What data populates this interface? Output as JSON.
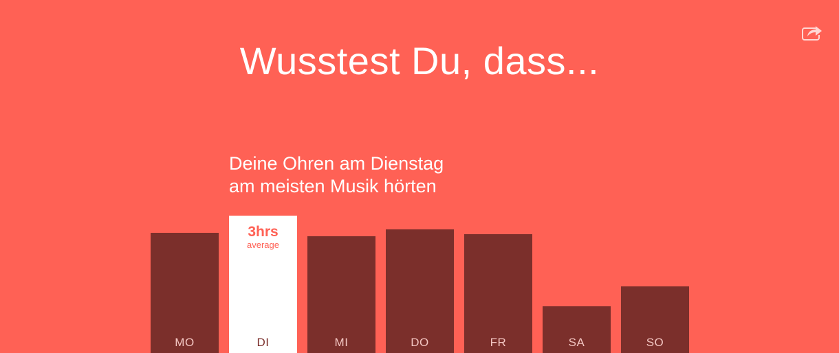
{
  "headline": "Wusstest Du, dass...",
  "caption": {
    "line1": "Deine Ohren am Dienstag",
    "line2": "am meisten Musik hörten"
  },
  "share": {
    "icon": "share-icon"
  },
  "colors": {
    "background": "#ff6155",
    "bar": "#7b2f2b",
    "highlight_bar": "#ffffff",
    "bar_label": "#f3c6c2",
    "highlight_label": "#7b2f2b",
    "value_label": "#ff6155"
  },
  "chart_data": {
    "type": "bar",
    "categories": [
      "MO",
      "DI",
      "MI",
      "DO",
      "FR",
      "SA",
      "SO"
    ],
    "values": [
      2.63,
      3.0,
      2.55,
      2.7,
      2.59,
      1.02,
      1.46
    ],
    "highlight_index": 1,
    "highlight_value_label": "3hrs",
    "highlight_value_sublabel": "average",
    "title": "",
    "xlabel": "",
    "ylabel": "",
    "ylim": [
      0,
      3
    ]
  }
}
